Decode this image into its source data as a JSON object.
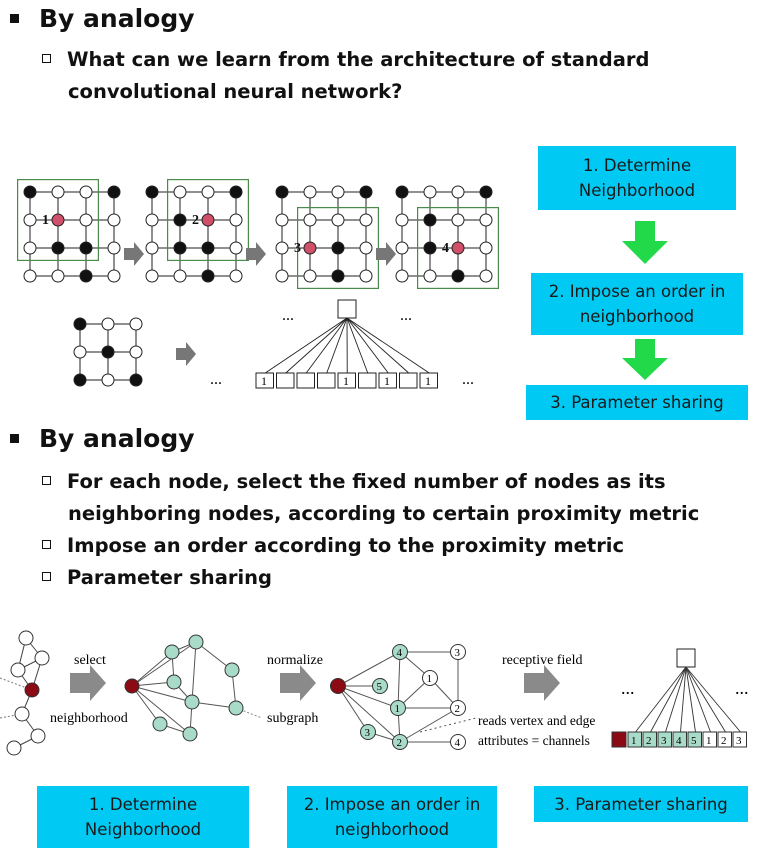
{
  "section1": {
    "heading": "By analogy",
    "bullet_line1": "What can we learn from the architecture of standard",
    "bullet_line2": "convolutional neural network?"
  },
  "cnn_diagram": {
    "window_labels": [
      "1",
      "2",
      "3",
      "4"
    ],
    "ellipsis": "...",
    "vector_cells": [
      "1",
      "",
      "",
      "",
      "1",
      "",
      "1",
      "",
      "1"
    ]
  },
  "steps_top": {
    "step1_line1": "1. Determine",
    "step1_line2": "Neighborhood",
    "step2_line1": "2. Impose an order in",
    "step2_line2": "neighborhood",
    "step3": "3. Parameter sharing",
    "arrow_color": "#22d94a",
    "box_color": "#00c9f3"
  },
  "section2": {
    "heading": "By analogy",
    "bullets": [
      {
        "line1": "For each node, select the fixed number of nodes as its",
        "line2": "neighboring nodes, according to certain proximity metric"
      },
      {
        "line1": "Impose an order according to the proximity metric",
        "line2": ""
      },
      {
        "line1": "Parameter sharing",
        "line2": ""
      }
    ]
  },
  "pipeline": {
    "select_label": "select",
    "neighborhood_label": "neighborhood",
    "normalize_label": "normalize",
    "subgraph_label": "subgraph",
    "receptive_label": "receptive field",
    "reads_line1": "reads vertex and edge",
    "reads_line2": "attributes = channels",
    "ellipsis": "...",
    "ordered_labels": [
      "1",
      "2",
      "3",
      "4",
      "5"
    ],
    "vector_cells": [
      "1",
      "2",
      "3",
      "4",
      "5",
      "1",
      "2",
      "3"
    ],
    "root_color": "#8b0a14",
    "neighbor_color": "#a8dcc8"
  },
  "steps_bottom": {
    "step1_line1": "1. Determine",
    "step1_line2": "Neighborhood",
    "step2_line1": "2. Impose an order in",
    "step2_line2": "neighborhood",
    "step3": "3. Parameter sharing"
  }
}
